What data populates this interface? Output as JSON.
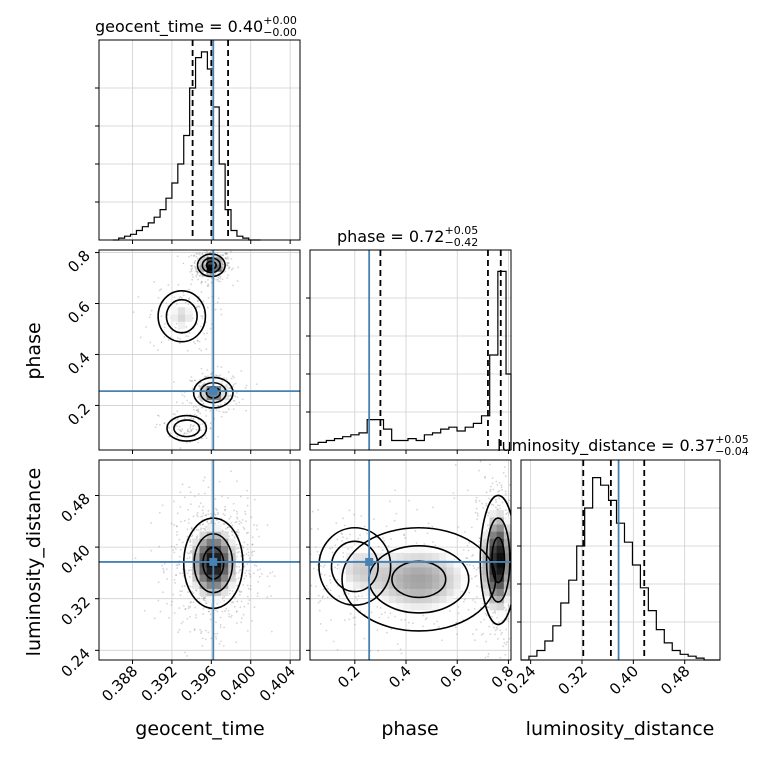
{
  "chart_data": {
    "type": "corner",
    "parameters": [
      "geocent_time",
      "phase",
      "luminosity_distance"
    ],
    "truths": {
      "geocent_time": 0.3962,
      "phase": 0.256,
      "luminosity_distance": 0.377
    },
    "truth_color": "#4682b4",
    "ranges": {
      "geocent_time": [
        0.3846,
        0.405
      ],
      "phase": [
        0.025,
        0.81
      ],
      "luminosity_distance": [
        0.225,
        0.535
      ]
    },
    "ticks": {
      "geocent_time": {
        "values": [
          0.388,
          0.392,
          0.396,
          0.4,
          0.404
        ],
        "labels": [
          "0.388",
          "0.392",
          "0.396",
          "0.400",
          "0.404"
        ]
      },
      "phase": {
        "values": [
          0.2,
          0.4,
          0.6,
          0.8
        ],
        "labels": [
          "0.2",
          "0.4",
          "0.6",
          "0.8"
        ]
      },
      "luminosity_distance": {
        "values": [
          0.24,
          0.32,
          0.4,
          0.48
        ],
        "labels": [
          "0.24",
          "0.32",
          "0.40",
          "0.48"
        ]
      }
    },
    "titles": [
      {
        "param": "geocent_time",
        "main": "geocent_time = 0.40",
        "sup": "+0.00",
        "sub": "−0.00"
      },
      {
        "param": "phase",
        "main": "phase = 0.72",
        "sup": "+0.05",
        "sub": "−0.42"
      },
      {
        "param": "luminosity_distance",
        "main": "luminosity_distance = 0.37",
        "sup": "+0.05",
        "sub": "−0.04"
      }
    ],
    "quantiles": {
      "geocent_time": [
        0.3941,
        0.396,
        0.3977
      ],
      "phase": [
        0.3,
        0.72,
        0.77
      ],
      "luminosity_distance": [
        0.322,
        0.365,
        0.417
      ]
    },
    "histograms": {
      "geocent_time": {
        "bins": [
          0.386,
          0.3866,
          0.3872,
          0.3878,
          0.3884,
          0.389,
          0.3896,
          0.3902,
          0.3908,
          0.3914,
          0.392,
          0.3926,
          0.3932,
          0.3938,
          0.3944,
          0.395,
          0.3956,
          0.3962,
          0.3968,
          0.3974,
          0.398,
          0.3986,
          0.3992,
          0.3998,
          0.4004,
          0.401
        ],
        "counts": [
          0.0,
          0.01,
          0.02,
          0.03,
          0.05,
          0.07,
          0.09,
          0.12,
          0.16,
          0.22,
          0.3,
          0.4,
          0.55,
          0.8,
          0.96,
          0.99,
          0.9,
          0.7,
          0.4,
          0.16,
          0.05,
          0.02,
          0.01,
          0.0,
          0.0
        ]
      },
      "phase": {
        "bins": [
          0.025,
          0.0569,
          0.0888,
          0.1207,
          0.1526,
          0.1845,
          0.2164,
          0.2483,
          0.2802,
          0.3121,
          0.344,
          0.3759,
          0.4078,
          0.4397,
          0.4716,
          0.5035,
          0.5354,
          0.5673,
          0.5992,
          0.6311,
          0.663,
          0.6949,
          0.7268,
          0.7587,
          0.7906,
          0.81
        ],
        "counts": [
          0.03,
          0.04,
          0.05,
          0.06,
          0.07,
          0.08,
          0.09,
          0.16,
          0.16,
          0.11,
          0.05,
          0.05,
          0.06,
          0.05,
          0.08,
          0.09,
          0.11,
          0.12,
          0.1,
          0.12,
          0.14,
          0.18,
          0.5,
          0.94,
          0.4
        ]
      },
      "luminosity_distance": {
        "bins": [
          0.225,
          0.2374,
          0.2498,
          0.2622,
          0.2746,
          0.287,
          0.2994,
          0.3118,
          0.3242,
          0.3366,
          0.349,
          0.3614,
          0.3738,
          0.3862,
          0.3986,
          0.411,
          0.4234,
          0.4358,
          0.4482,
          0.4606,
          0.473,
          0.4854,
          0.4978,
          0.5102,
          0.5226,
          0.535
        ],
        "counts": [
          0.0,
          0.02,
          0.05,
          0.1,
          0.18,
          0.3,
          0.42,
          0.6,
          0.8,
          0.96,
          0.92,
          0.84,
          0.72,
          0.62,
          0.5,
          0.38,
          0.26,
          0.16,
          0.09,
          0.05,
          0.03,
          0.02,
          0.01,
          0.0,
          0.0
        ]
      }
    },
    "joint": {
      "phase_vs_geocent_time": {
        "modes": [
          {
            "x": 0.396,
            "y": 0.75,
            "sx": 0.0007,
            "sy": 0.022,
            "w": 0.45
          },
          {
            "x": 0.3962,
            "y": 0.25,
            "sx": 0.001,
            "sy": 0.03,
            "w": 0.3
          },
          {
            "x": 0.393,
            "y": 0.55,
            "sx": 0.0012,
            "sy": 0.05,
            "w": 0.15
          },
          {
            "x": 0.3935,
            "y": 0.11,
            "sx": 0.001,
            "sy": 0.025,
            "w": 0.1
          }
        ]
      },
      "luminosity_distance_vs_geocent_time": {
        "modes": [
          {
            "x": 0.3962,
            "y": 0.375,
            "sx": 0.0015,
            "sy": 0.035,
            "w": 1.0
          }
        ]
      },
      "luminosity_distance_vs_phase": {
        "modes": [
          {
            "x": 0.76,
            "y": 0.38,
            "sx": 0.035,
            "sy": 0.05,
            "w": 0.55
          },
          {
            "x": 0.45,
            "y": 0.35,
            "sx": 0.15,
            "sy": 0.04,
            "w": 0.3
          },
          {
            "x": 0.2,
            "y": 0.37,
            "sx": 0.07,
            "sy": 0.03,
            "w": 0.15
          }
        ]
      }
    },
    "grid": true
  }
}
